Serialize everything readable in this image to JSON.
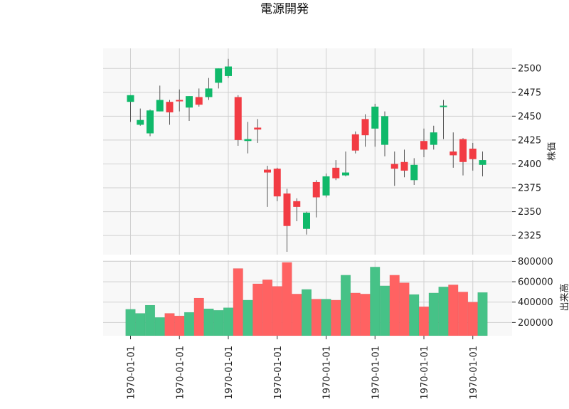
{
  "chart_data": {
    "type": "candlestick",
    "title": "電源開発",
    "x_tick_labels": [
      "1970-01-01",
      "1970-01-01",
      "1970-01-01",
      "1970-01-01",
      "1970-01-01",
      "1970-01-01",
      "1970-01-01",
      "1970-01-01"
    ],
    "x_tick_indices": [
      0,
      5,
      10,
      15,
      20,
      25,
      30,
      35
    ],
    "price_panel": {
      "ylabel": "株価",
      "ylim": [
        2305,
        2521
      ],
      "yticks": [
        2325,
        2350,
        2375,
        2400,
        2425,
        2450,
        2475,
        2500
      ],
      "candles": [
        {
          "o": 2465,
          "h": 2472,
          "l": 2444,
          "c": 2472
        },
        {
          "o": 2441,
          "h": 2458,
          "l": 2440,
          "c": 2446
        },
        {
          "o": 2432,
          "h": 2457,
          "l": 2429,
          "c": 2456
        },
        {
          "o": 2455,
          "h": 2482,
          "l": 2455,
          "c": 2467
        },
        {
          "o": 2465,
          "h": 2467,
          "l": 2441,
          "c": 2454
        },
        {
          "o": 2467,
          "h": 2478,
          "l": 2455,
          "c": 2466
        },
        {
          "o": 2459,
          "h": 2471,
          "l": 2445,
          "c": 2471
        },
        {
          "o": 2470,
          "h": 2479,
          "l": 2460,
          "c": 2462
        },
        {
          "o": 2470,
          "h": 2490,
          "l": 2467,
          "c": 2479
        },
        {
          "o": 2485,
          "h": 2500,
          "l": 2479,
          "c": 2500
        },
        {
          "o": 2492,
          "h": 2510,
          "l": 2490,
          "c": 2502
        },
        {
          "o": 2470,
          "h": 2472,
          "l": 2419,
          "c": 2425
        },
        {
          "o": 2424,
          "h": 2444,
          "l": 2411,
          "c": 2426
        },
        {
          "o": 2438,
          "h": 2447,
          "l": 2422,
          "c": 2436
        },
        {
          "o": 2394,
          "h": 2398,
          "l": 2355,
          "c": 2391
        },
        {
          "o": 2395,
          "h": 2396,
          "l": 2361,
          "c": 2366
        },
        {
          "o": 2369,
          "h": 2374,
          "l": 2308,
          "c": 2335
        },
        {
          "o": 2361,
          "h": 2364,
          "l": 2340,
          "c": 2355
        },
        {
          "o": 2332,
          "h": 2350,
          "l": 2326,
          "c": 2349
        },
        {
          "o": 2381,
          "h": 2383,
          "l": 2344,
          "c": 2365
        },
        {
          "o": 2367,
          "h": 2390,
          "l": 2365,
          "c": 2387
        },
        {
          "o": 2396,
          "h": 2404,
          "l": 2383,
          "c": 2385
        },
        {
          "o": 2388,
          "h": 2413,
          "l": 2387,
          "c": 2391
        },
        {
          "o": 2431,
          "h": 2434,
          "l": 2411,
          "c": 2414
        },
        {
          "o": 2447,
          "h": 2452,
          "l": 2418,
          "c": 2430
        },
        {
          "o": 2437,
          "h": 2463,
          "l": 2418,
          "c": 2460
        },
        {
          "o": 2420,
          "h": 2455,
          "l": 2408,
          "c": 2450
        },
        {
          "o": 2400,
          "h": 2413,
          "l": 2377,
          "c": 2395
        },
        {
          "o": 2402,
          "h": 2415,
          "l": 2386,
          "c": 2393
        },
        {
          "o": 2383,
          "h": 2406,
          "l": 2378,
          "c": 2399
        },
        {
          "o": 2424,
          "h": 2437,
          "l": 2407,
          "c": 2415
        },
        {
          "o": 2420,
          "h": 2440,
          "l": 2415,
          "c": 2433
        },
        {
          "o": 2460,
          "h": 2467,
          "l": 2426,
          "c": 2461
        },
        {
          "o": 2413,
          "h": 2433,
          "l": 2396,
          "c": 2409
        },
        {
          "o": 2426,
          "h": 2427,
          "l": 2388,
          "c": 2402
        },
        {
          "o": 2416,
          "h": 2422,
          "l": 2393,
          "c": 2405
        },
        {
          "o": 2399,
          "h": 2413,
          "l": 2387,
          "c": 2404
        }
      ]
    },
    "volume_panel": {
      "ylabel": "出来高",
      "ylim": [
        70000,
        810000
      ],
      "yticks": [
        200000,
        400000,
        600000,
        800000
      ],
      "values": [
        330000,
        290000,
        370000,
        250000,
        290000,
        265000,
        300000,
        440000,
        335000,
        320000,
        345000,
        730000,
        420000,
        580000,
        620000,
        555000,
        790000,
        480000,
        525000,
        430000,
        430000,
        420000,
        665000,
        490000,
        480000,
        745000,
        560000,
        665000,
        590000,
        475000,
        355000,
        490000,
        550000,
        570000,
        500000,
        400000,
        495000
      ]
    },
    "colors": {
      "up": "#0fb96a",
      "down": "#f23b43",
      "up_volume": "#46c287",
      "down_volume": "#ff6262",
      "grid": "#d0d0d0",
      "panel_bg": "#f8f8f8"
    },
    "grid": true
  }
}
